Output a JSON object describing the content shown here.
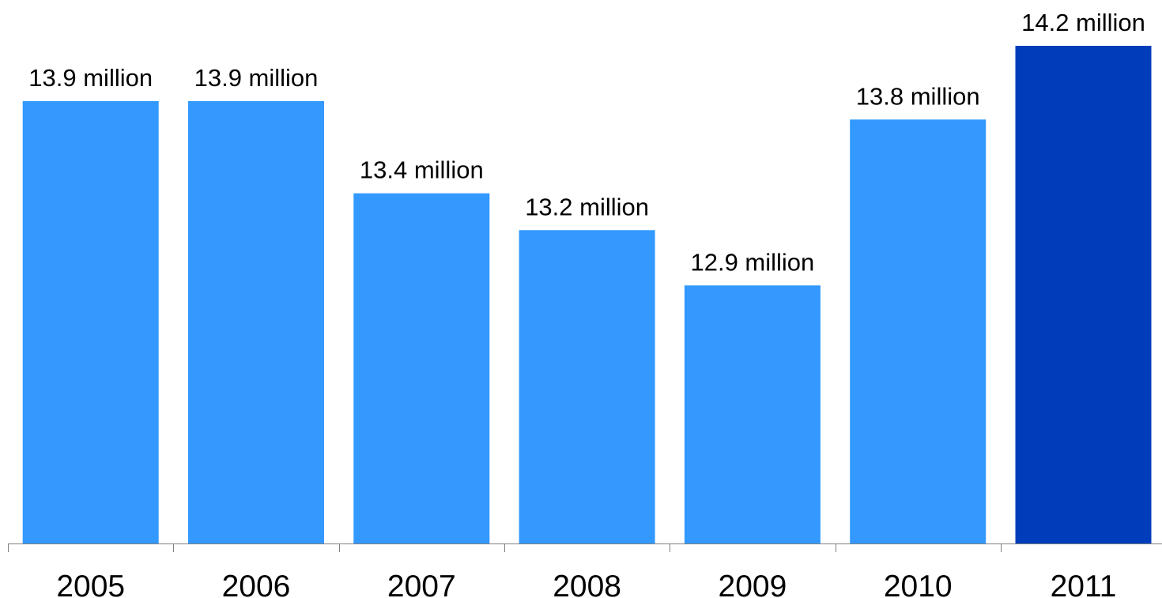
{
  "chart_data": {
    "type": "bar",
    "categories": [
      "2005",
      "2006",
      "2007",
      "2008",
      "2009",
      "2010",
      "2011"
    ],
    "values": [
      13.9,
      13.9,
      13.4,
      13.2,
      12.9,
      13.8,
      14.2
    ],
    "data_labels": [
      "13.9 million",
      "13.9 million",
      "13.4 million",
      "13.2 million",
      "12.9 million",
      "13.8 million",
      "14.2 million"
    ],
    "title": "",
    "xlabel": "",
    "ylabel": "",
    "ylim": [
      11.5,
      14.2
    ],
    "grid": false,
    "legend": "none",
    "colors": {
      "bar": "#3399FF",
      "highlight_bar": "#003DBA",
      "axis": "#808080"
    },
    "highlight_index": 6
  }
}
